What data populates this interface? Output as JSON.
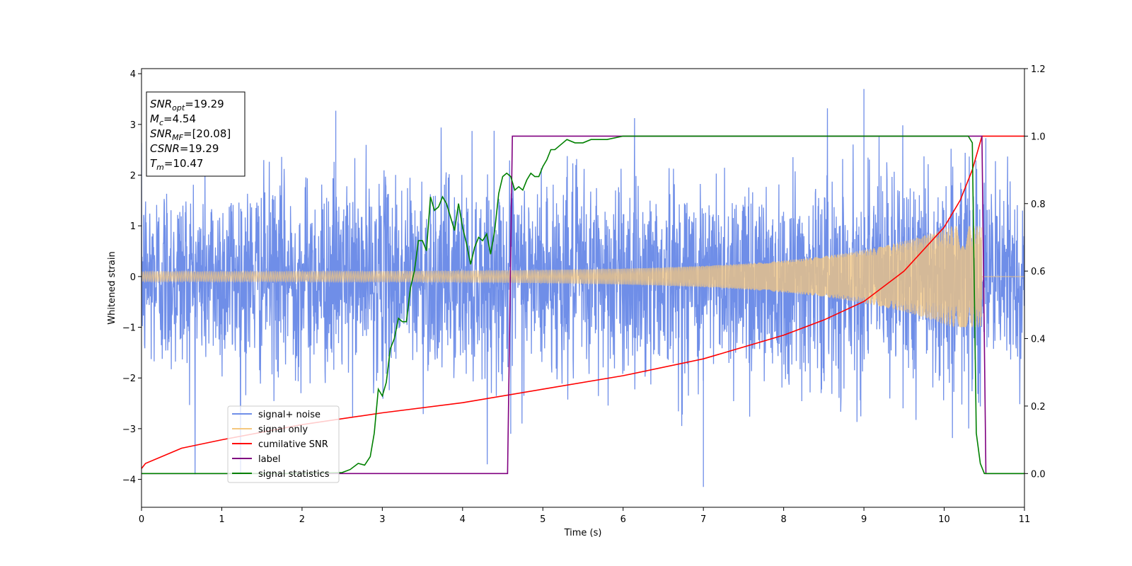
{
  "chart_data": {
    "type": "line",
    "title": "",
    "xlabel": "Time (s)",
    "ylabel": "Whitened strain",
    "y2label": "",
    "xlim": [
      0,
      11
    ],
    "ylim": [
      -4.55,
      4.1
    ],
    "y2lim": [
      -0.1,
      1.2
    ],
    "xticks": [
      0,
      1,
      2,
      3,
      4,
      5,
      6,
      7,
      8,
      9,
      10,
      11
    ],
    "yticks": [
      -4,
      -3,
      -2,
      -1,
      0,
      1,
      2,
      3,
      4
    ],
    "y2ticks": [
      0.0,
      0.2,
      0.4,
      0.6,
      0.8,
      1.0,
      1.2
    ],
    "xtick_labels": [
      "0",
      "1",
      "2",
      "3",
      "4",
      "5",
      "6",
      "7",
      "8",
      "9",
      "10",
      "11"
    ],
    "ytick_labels": [
      "−4",
      "−3",
      "−2",
      "−1",
      "0",
      "1",
      "2",
      "3",
      "4"
    ],
    "y2tick_labels": [
      "0.0",
      "0.2",
      "0.4",
      "0.6",
      "0.8",
      "1.0",
      "1.2"
    ],
    "grid": false,
    "legend_position": "lower-left",
    "annotation": [
      {
        "base": "SNR",
        "sub": "opt",
        "value": "=19.29"
      },
      {
        "base": "M",
        "sub": "c",
        "value": "=4.54"
      },
      {
        "base": "SNR",
        "sub": "MF",
        "value": "=[20.08]"
      },
      {
        "base": "CSNR",
        "sub": "",
        "value": "=19.29"
      },
      {
        "base": "T",
        "sub": "m",
        "value": "=10.47"
      }
    ],
    "series": [
      {
        "name": "signal+ noise",
        "axis": "left",
        "color": "#6f8ee8",
        "kind": "noise",
        "sigma": 1.0,
        "end_time": 11,
        "note_peaks": [
          [
            2.42,
            3.27
          ],
          [
            7.0,
            -4.15
          ],
          [
            9.0,
            3.7
          ],
          [
            4.6,
            -3.1
          ]
        ]
      },
      {
        "name": "signal only",
        "axis": "left",
        "color": "#f5c77e",
        "kind": "chirp",
        "start_amp": 0.1,
        "end_amp": 1.0,
        "merger_time": 10.47
      },
      {
        "name": "cumilative SNR",
        "axis": "right",
        "color": "#ff0000",
        "x": [
          0,
          0.05,
          0.5,
          1,
          2,
          3,
          4,
          5,
          6,
          7,
          8,
          8.5,
          9,
          9.5,
          10,
          10.2,
          10.35,
          10.47,
          11
        ],
        "y": [
          0.015,
          0.03,
          0.075,
          0.1,
          0.145,
          0.18,
          0.21,
          0.25,
          0.29,
          0.34,
          0.41,
          0.455,
          0.51,
          0.6,
          0.73,
          0.81,
          0.9,
          1.0,
          1.0
        ]
      },
      {
        "name": "label",
        "axis": "right",
        "color": "#800080",
        "x": [
          0,
          4.56,
          4.62,
          10.47,
          10.52,
          11
        ],
        "y": [
          0,
          0,
          1,
          1,
          0,
          0
        ]
      },
      {
        "name": "signal statistics",
        "axis": "right",
        "color": "#008000",
        "x": [
          0,
          0.5,
          1,
          1.5,
          2,
          2.5,
          2.6,
          2.7,
          2.78,
          2.85,
          2.9,
          2.95,
          3.0,
          3.05,
          3.1,
          3.15,
          3.2,
          3.25,
          3.3,
          3.35,
          3.4,
          3.45,
          3.5,
          3.55,
          3.6,
          3.65,
          3.7,
          3.75,
          3.8,
          3.85,
          3.9,
          3.95,
          4.0,
          4.05,
          4.1,
          4.15,
          4.2,
          4.25,
          4.3,
          4.35,
          4.4,
          4.45,
          4.5,
          4.55,
          4.6,
          4.65,
          4.7,
          4.75,
          4.8,
          4.85,
          4.9,
          4.95,
          5.0,
          5.05,
          5.1,
          5.15,
          5.2,
          5.3,
          5.4,
          5.5,
          5.6,
          5.8,
          6.0,
          6.2,
          6.5,
          7,
          8,
          9,
          10,
          10.2,
          10.3,
          10.35,
          10.4,
          10.45,
          10.5,
          10.6,
          11
        ],
        "y": [
          0.0,
          0.0,
          0.0,
          0.0,
          0.0,
          0.003,
          0.012,
          0.03,
          0.025,
          0.05,
          0.12,
          0.25,
          0.23,
          0.27,
          0.37,
          0.4,
          0.46,
          0.45,
          0.45,
          0.55,
          0.6,
          0.69,
          0.69,
          0.66,
          0.82,
          0.78,
          0.79,
          0.82,
          0.8,
          0.76,
          0.72,
          0.8,
          0.73,
          0.68,
          0.62,
          0.67,
          0.7,
          0.69,
          0.71,
          0.65,
          0.72,
          0.83,
          0.88,
          0.89,
          0.88,
          0.84,
          0.85,
          0.84,
          0.87,
          0.89,
          0.88,
          0.88,
          0.91,
          0.93,
          0.96,
          0.96,
          0.97,
          0.99,
          0.98,
          0.98,
          0.99,
          0.99,
          1.0,
          1.0,
          1.0,
          1.0,
          1.0,
          1.0,
          1.0,
          1.0,
          1.0,
          0.98,
          0.12,
          0.03,
          0.0,
          0.0,
          0.0
        ]
      }
    ]
  }
}
